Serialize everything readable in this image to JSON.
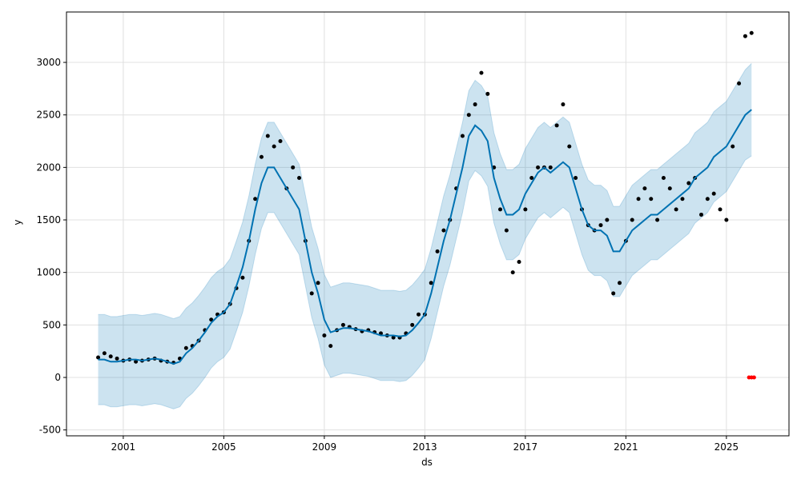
{
  "chart_data": {
    "type": "scatter",
    "xlabel": "ds",
    "ylabel": "y",
    "x": [
      2000,
      2000.25,
      2000.5,
      2000.75,
      2001,
      2001.25,
      2001.5,
      2001.75,
      2002,
      2002.25,
      2002.5,
      2002.75,
      2003,
      2003.25,
      2003.5,
      2003.75,
      2004,
      2004.25,
      2004.5,
      2004.75,
      2005,
      2005.25,
      2005.5,
      2005.75,
      2006,
      2006.25,
      2006.5,
      2006.75,
      2007,
      2007.25,
      2007.5,
      2007.75,
      2008,
      2008.25,
      2008.5,
      2008.75,
      2009,
      2009.25,
      2009.5,
      2009.75,
      2010,
      2010.25,
      2010.5,
      2010.75,
      2011,
      2011.25,
      2011.5,
      2011.75,
      2012,
      2012.25,
      2012.5,
      2012.75,
      2013,
      2013.25,
      2013.5,
      2013.75,
      2014,
      2014.25,
      2014.5,
      2014.75,
      2015,
      2015.25,
      2015.5,
      2015.75,
      2016,
      2016.25,
      2016.5,
      2016.75,
      2017,
      2017.25,
      2017.5,
      2017.75,
      2018,
      2018.25,
      2018.5,
      2018.75,
      2019,
      2019.25,
      2019.5,
      2019.75,
      2020,
      2020.25,
      2020.5,
      2020.75,
      2021,
      2021.25,
      2021.5,
      2021.75,
      2022,
      2022.25,
      2022.5,
      2022.75,
      2023,
      2023.25,
      2023.5,
      2023.75,
      2024,
      2024.25,
      2024.5,
      2024.75,
      2025,
      2025.25,
      2025.5,
      2025.75,
      2026
    ],
    "series": [
      {
        "kind": "points",
        "color": "#000000",
        "values": [
          190,
          230,
          200,
          180,
          160,
          170,
          150,
          160,
          170,
          180,
          160,
          150,
          140,
          180,
          280,
          300,
          350,
          450,
          550,
          600,
          620,
          700,
          850,
          950,
          1300,
          1700,
          2100,
          2300,
          2200,
          2250,
          1800,
          2000,
          1900,
          1300,
          800,
          900,
          400,
          300,
          450,
          500,
          480,
          460,
          440,
          450,
          430,
          420,
          400,
          380,
          380,
          420,
          500,
          600,
          600,
          900,
          1200,
          1400,
          1500,
          1800,
          2300,
          2500,
          2600,
          2900,
          2700,
          2000,
          1600,
          1400,
          1000,
          1100,
          1600,
          1900,
          2000,
          2000,
          2000,
          2400,
          2600,
          2200,
          1900,
          1600,
          1450,
          1400,
          1450,
          1500,
          800,
          900,
          1300,
          1500,
          1700,
          1800,
          1700,
          1500,
          1900,
          1800,
          1600,
          1700,
          1850,
          1900,
          1550,
          1700,
          1750,
          1600,
          1500,
          2200,
          2800,
          3250,
          3280
        ]
      },
      {
        "kind": "line",
        "color": "#0072B2",
        "values": [
          170,
          170,
          150,
          150,
          160,
          170,
          170,
          160,
          170,
          180,
          170,
          150,
          130,
          150,
          230,
          280,
          350,
          430,
          520,
          580,
          620,
          700,
          870,
          1050,
          1300,
          1600,
          1850,
          2000,
          2000,
          1900,
          1800,
          1700,
          1600,
          1300,
          1000,
          800,
          550,
          430,
          450,
          470,
          470,
          460,
          450,
          440,
          420,
          400,
          400,
          400,
          390,
          400,
          450,
          520,
          600,
          800,
          1050,
          1300,
          1500,
          1750,
          2000,
          2300,
          2400,
          2350,
          2250,
          1900,
          1700,
          1550,
          1550,
          1600,
          1750,
          1850,
          1950,
          2000,
          1950,
          2000,
          2050,
          2000,
          1800,
          1600,
          1450,
          1400,
          1400,
          1350,
          1200,
          1200,
          1300,
          1400,
          1450,
          1500,
          1550,
          1550,
          1600,
          1650,
          1700,
          1750,
          1800,
          1900,
          1950,
          2000,
          2100,
          2150,
          2200,
          2300,
          2400,
          2500,
          2550
        ]
      },
      {
        "kind": "upper",
        "color": "#0072B2",
        "values": [
          600,
          600,
          580,
          580,
          590,
          600,
          600,
          590,
          600,
          610,
          600,
          580,
          560,
          580,
          660,
          710,
          780,
          860,
          950,
          1010,
          1050,
          1130,
          1300,
          1480,
          1730,
          2030,
          2280,
          2430,
          2430,
          2330,
          2230,
          2130,
          2030,
          1730,
          1430,
          1230,
          980,
          860,
          880,
          900,
          900,
          890,
          880,
          870,
          850,
          830,
          830,
          830,
          820,
          830,
          880,
          950,
          1030,
          1230,
          1480,
          1730,
          1930,
          2180,
          2430,
          2730,
          2830,
          2780,
          2680,
          2330,
          2130,
          1980,
          1980,
          2030,
          2180,
          2280,
          2380,
          2430,
          2380,
          2430,
          2480,
          2430,
          2230,
          2030,
          1880,
          1830,
          1830,
          1780,
          1630,
          1630,
          1730,
          1830,
          1880,
          1930,
          1980,
          1980,
          2030,
          2080,
          2130,
          2180,
          2230,
          2330,
          2380,
          2430,
          2530,
          2580,
          2630,
          2730,
          2830,
          2930,
          2990
        ]
      },
      {
        "kind": "lower",
        "color": "#0072B2",
        "values": [
          -260,
          -260,
          -280,
          -280,
          -270,
          -260,
          -260,
          -270,
          -260,
          -250,
          -260,
          -280,
          -300,
          -280,
          -200,
          -150,
          -80,
          0,
          90,
          150,
          190,
          270,
          440,
          620,
          870,
          1170,
          1420,
          1570,
          1570,
          1470,
          1370,
          1270,
          1170,
          870,
          570,
          370,
          120,
          0,
          20,
          40,
          40,
          30,
          20,
          10,
          -10,
          -30,
          -30,
          -30,
          -40,
          -30,
          20,
          90,
          170,
          370,
          620,
          870,
          1070,
          1320,
          1570,
          1870,
          1970,
          1920,
          1820,
          1470,
          1270,
          1120,
          1120,
          1170,
          1320,
          1420,
          1520,
          1570,
          1520,
          1570,
          1620,
          1570,
          1370,
          1170,
          1020,
          970,
          970,
          920,
          770,
          770,
          870,
          970,
          1020,
          1070,
          1120,
          1120,
          1170,
          1220,
          1270,
          1320,
          1370,
          1470,
          1520,
          1570,
          1670,
          1720,
          1770,
          1870,
          1970,
          2070,
          2110
        ]
      },
      {
        "kind": "points",
        "color": "#ff0000",
        "x": [
          2025.9,
          2026,
          2026.1
        ],
        "values": [
          0,
          0,
          0
        ]
      }
    ],
    "xlim": [
      1998.74,
      2027.49
    ],
    "ylim": [
      -556,
      3480
    ],
    "xticks": [
      2001,
      2005,
      2009,
      2013,
      2017,
      2021,
      2025
    ],
    "yticks": [
      -500,
      0,
      500,
      1000,
      1500,
      2000,
      2500,
      3000
    ],
    "grid": true
  }
}
